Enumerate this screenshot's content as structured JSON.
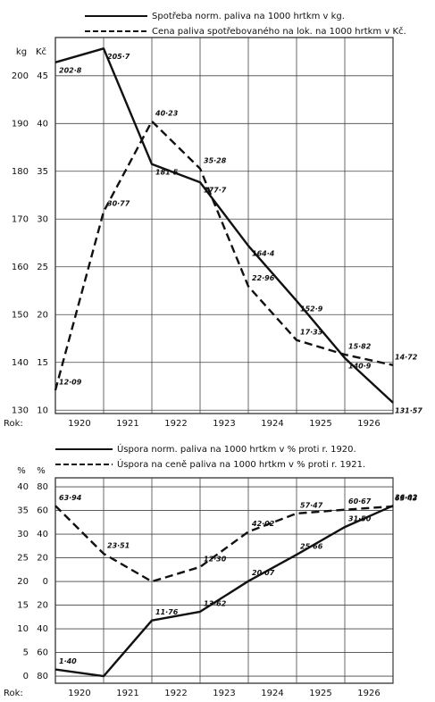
{
  "chart_data": [
    {
      "type": "line",
      "ylabel": "kg",
      "y2label": "Kč",
      "x_label": "Rok:",
      "x": [
        1920,
        1921,
        1922,
        1923,
        1924,
        1925,
        1926,
        1927
      ],
      "xlim": [
        1920,
        1927
      ],
      "xticks": [
        {
          "value": 1920.5,
          "label": "1920"
        },
        {
          "value": 1921.5,
          "label": "1921"
        },
        {
          "value": 1922.5,
          "label": "1922"
        },
        {
          "value": 1923.5,
          "label": "1923"
        },
        {
          "value": 1924.5,
          "label": "1924"
        },
        {
          "value": 1925.5,
          "label": "1925"
        },
        {
          "value": 1926.5,
          "label": "1926"
        }
      ],
      "ylim": [
        129.3,
        208
      ],
      "yticks": [
        130,
        140,
        150,
        160,
        170,
        180,
        190,
        200
      ],
      "y2lim": [
        9.65,
        49
      ],
      "y2ticks": [
        10,
        15,
        20,
        25,
        30,
        35,
        40,
        45
      ],
      "grid": true,
      "series": [
        {
          "name": "Spotřeba norm. paliva na 1000 hrtkm v kg.",
          "color": "#111111",
          "dashed": false,
          "values": [
            202.8,
            205.7,
            181.5,
            177.7,
            164.4,
            152.9,
            140.9,
            131.57
          ],
          "value_labels": [
            "202·8",
            "205·7",
            "181·5",
            "177·7",
            "164·4",
            "152·9",
            "140·9",
            "131·57"
          ]
        },
        {
          "name": "Cena paliva spotřebovaného na lok. na 1000 hrtkm v Kč.",
          "color": "#111111",
          "dashed": true,
          "axis": "y2",
          "values": [
            12.09,
            30.77,
            40.23,
            35.28,
            22.96,
            17.33,
            15.82,
            14.72
          ],
          "value_labels": [
            "12·09",
            "30·77",
            "40·23",
            "35·28",
            "22·96",
            "17·33",
            "15·82",
            "14·72"
          ]
        }
      ]
    },
    {
      "type": "line",
      "ylabel": "%",
      "y2label": "%",
      "x_label": "Rok:",
      "x": [
        1920,
        1921,
        1922,
        1923,
        1924,
        1925,
        1926,
        1927
      ],
      "xlim": [
        1920,
        1927
      ],
      "xticks": [
        {
          "value": 1920.5,
          "label": "1920"
        },
        {
          "value": 1921.5,
          "label": "1921"
        },
        {
          "value": 1922.5,
          "label": "1922"
        },
        {
          "value": 1923.5,
          "label": "1923"
        },
        {
          "value": 1924.5,
          "label": "1924"
        },
        {
          "value": 1925.5,
          "label": "1925"
        },
        {
          "value": 1926.5,
          "label": "1926"
        }
      ],
      "ylim": [
        -1.5,
        41.9
      ],
      "yticks": [
        0,
        5,
        10,
        15,
        20,
        25,
        30,
        35,
        40
      ],
      "y2lim": [
        -86,
        87.6
      ],
      "y2ticks": [
        {
          "value": -80,
          "label": "80"
        },
        {
          "value": -60,
          "label": "60"
        },
        {
          "value": -40,
          "label": "40"
        },
        {
          "value": -20,
          "label": "20"
        },
        0,
        20,
        40,
        60,
        80
      ],
      "grid": true,
      "series": [
        {
          "name": "Úspora norm. paliva na 1000 hrtkm v % proti r. 1920.",
          "color": "#111111",
          "dashed": false,
          "values": [
            1.4,
            0,
            11.76,
            13.62,
            20.07,
            25.66,
            31.5,
            36.02
          ],
          "value_labels": [
            "1·40",
            null,
            "11·76",
            "13·62",
            "20·07",
            "25·66",
            "31·50",
            "36·02"
          ]
        },
        {
          "name": "Úspora na ceně paliva na 1000 hrtkm v % proti r. 1921.",
          "color": "#111111",
          "dashed": true,
          "axis": "y2",
          "values": [
            63.94,
            23.51,
            0,
            12.3,
            42.02,
            57.47,
            60.67,
            63.43
          ],
          "value_labels": [
            "63·94",
            "23·51",
            null,
            "12·30",
            "42·02",
            "57·47",
            "60·67",
            "63·43"
          ]
        }
      ]
    }
  ]
}
